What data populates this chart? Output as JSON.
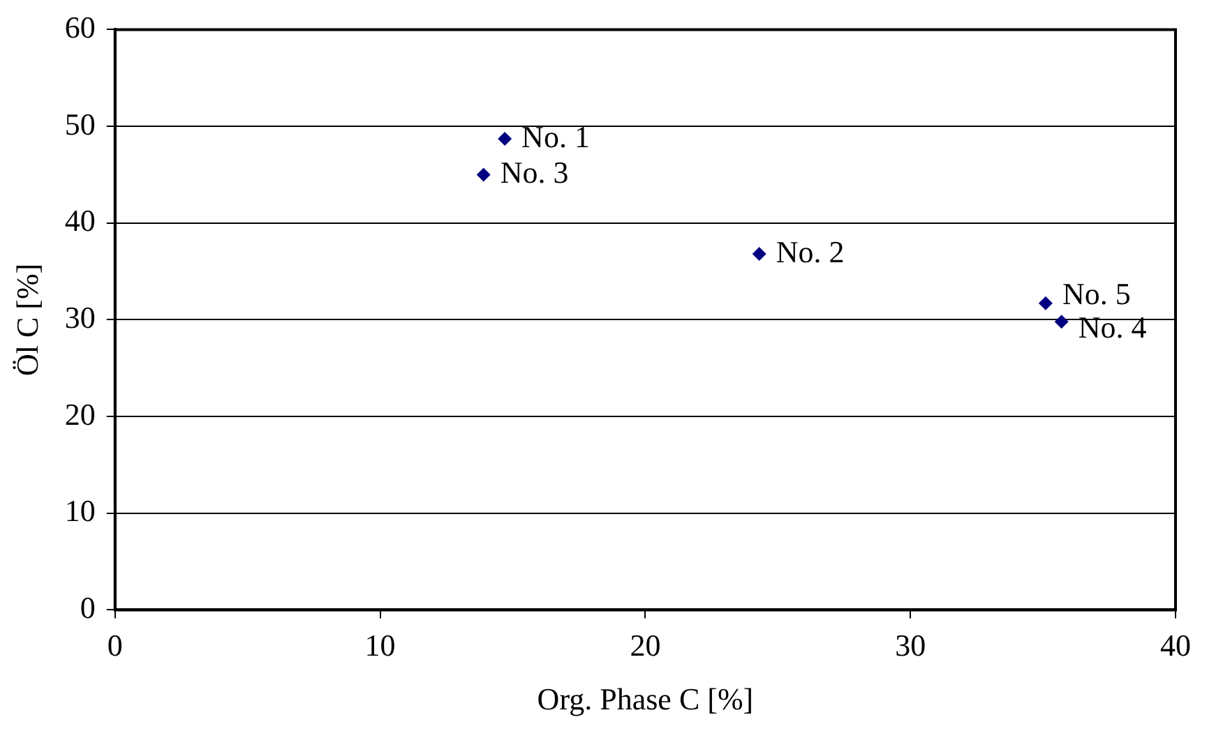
{
  "chart_data": {
    "type": "scatter",
    "xlabel": "Org. Phase C [%]",
    "ylabel": "Öl C [%]",
    "x": [
      14.7,
      24.3,
      13.9,
      35.7,
      35.1
    ],
    "series": [
      {
        "color": "#000080",
        "values": [
          48.7,
          36.8,
          45.0,
          29.8,
          31.7
        ]
      }
    ],
    "xlim": [
      0,
      40
    ],
    "xticks": [
      0,
      10,
      20,
      30,
      40
    ],
    "ylim": [
      0,
      60
    ],
    "yticks": [
      0,
      10,
      20,
      30,
      40,
      50,
      60
    ],
    "grid": "y",
    "legend": false,
    "marker": "diamond",
    "annotations": [
      {
        "text": "No. 1",
        "x": 14.7,
        "y": 48.7
      },
      {
        "text": "No. 2",
        "x": 24.3,
        "y": 36.8
      },
      {
        "text": "No. 3",
        "x": 13.9,
        "y": 45.0
      },
      {
        "text": "No. 4",
        "x": 35.7,
        "y": 29.8
      },
      {
        "text": "No. 5",
        "x": 35.1,
        "y": 31.7
      }
    ]
  }
}
